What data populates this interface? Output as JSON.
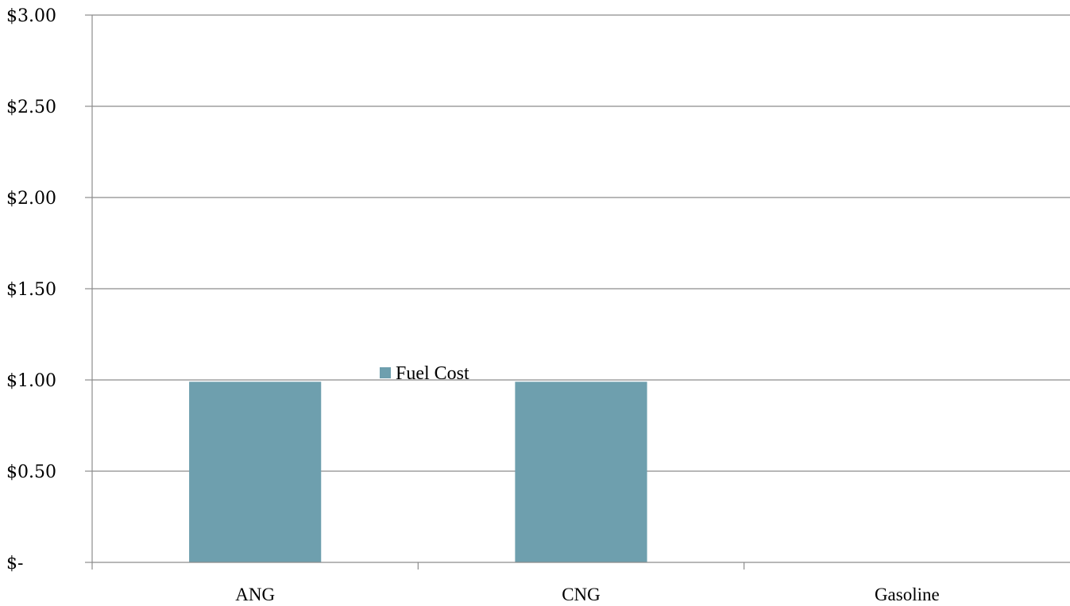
{
  "chart_data": {
    "type": "bar",
    "categories": [
      "ANG",
      "CNG",
      "Gasoline"
    ],
    "series": [
      {
        "name": "Fuel Cost",
        "values": [
          0.99,
          0.99,
          0
        ],
        "color": "#6e9fae"
      }
    ],
    "ylim": [
      0,
      3
    ],
    "yticks": [
      0,
      0.5,
      1.0,
      1.5,
      2.0,
      2.5,
      3.0
    ],
    "ytick_labels": [
      "$-",
      "$0.50",
      "$1.00",
      "$1.50",
      "$2.00",
      "$2.50",
      "$3.00"
    ],
    "grid": true,
    "legend": {
      "placement": "inside-center",
      "entries": [
        "Fuel Cost"
      ]
    },
    "title": "",
    "xlabel": "",
    "ylabel": ""
  }
}
